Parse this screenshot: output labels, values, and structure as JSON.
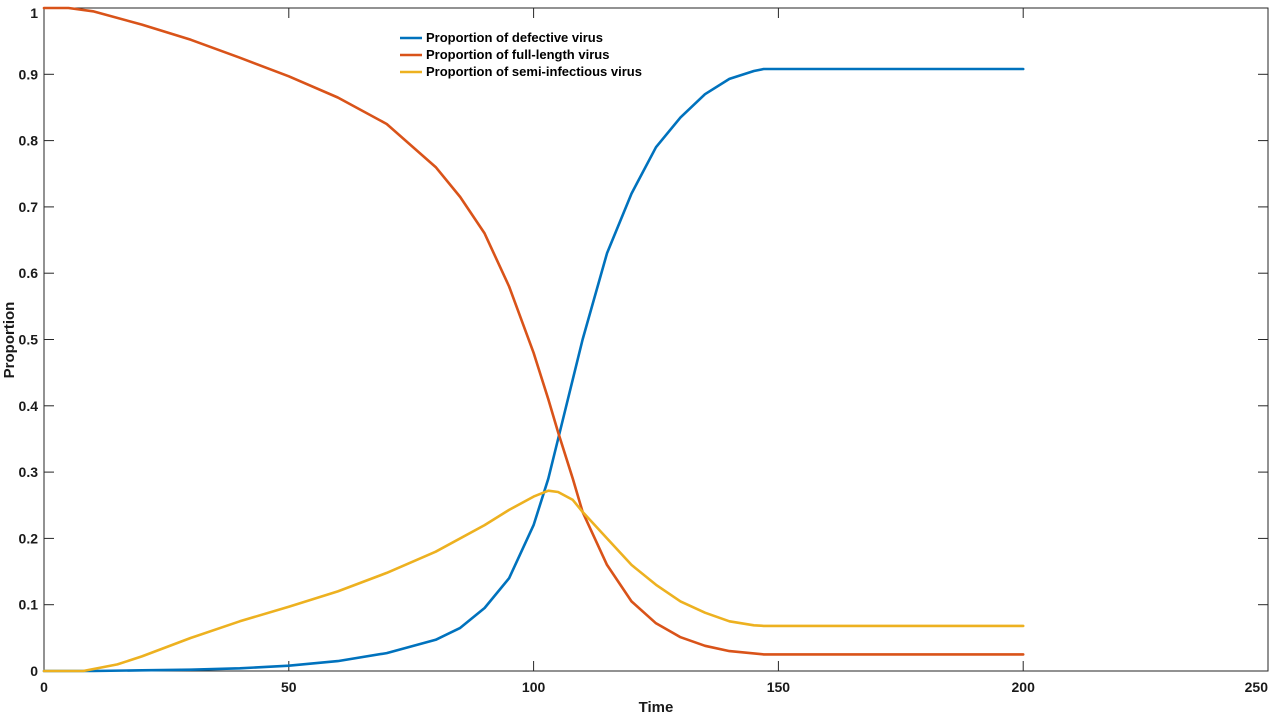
{
  "chart_data": {
    "type": "line",
    "title": "",
    "xlabel": "Time",
    "ylabel": "Proportion",
    "xlim": [
      0,
      250
    ],
    "ylim": [
      0,
      1
    ],
    "xticks": [
      0,
      50,
      100,
      150,
      200,
      250
    ],
    "yticks": [
      0,
      0.1,
      0.2,
      0.3,
      0.4,
      0.5,
      0.6,
      0.7,
      0.8,
      0.9,
      1
    ],
    "ytick_labels": [
      "0",
      "0.1",
      "0.2",
      "0.3",
      "0.4",
      "0.5",
      "0.6",
      "0.7",
      "0.8",
      "0.9",
      "1"
    ],
    "grid": false,
    "legend_position": "top-center",
    "series": [
      {
        "name": "Proportion of defective virus",
        "color": "#0072BD",
        "x": [
          0,
          10,
          20,
          30,
          40,
          50,
          60,
          70,
          80,
          85,
          90,
          95,
          100,
          103,
          105,
          108,
          110,
          115,
          120,
          125,
          130,
          135,
          140,
          145,
          147,
          150,
          200
        ],
        "y": [
          0,
          0,
          0.001,
          0.002,
          0.004,
          0.008,
          0.015,
          0.027,
          0.047,
          0.065,
          0.095,
          0.14,
          0.22,
          0.29,
          0.35,
          0.44,
          0.5,
          0.63,
          0.72,
          0.79,
          0.835,
          0.87,
          0.893,
          0.905,
          0.908,
          0.908,
          0.908
        ]
      },
      {
        "name": "Proportion of full-length virus",
        "color": "#D95319",
        "x": [
          0,
          5,
          10,
          20,
          30,
          40,
          50,
          60,
          70,
          80,
          85,
          90,
          95,
          100,
          103,
          105,
          108,
          110,
          115,
          120,
          125,
          130,
          135,
          140,
          147,
          150,
          200
        ],
        "y": [
          1,
          1,
          0.995,
          0.975,
          0.952,
          0.925,
          0.897,
          0.865,
          0.825,
          0.76,
          0.715,
          0.66,
          0.58,
          0.48,
          0.41,
          0.36,
          0.29,
          0.24,
          0.16,
          0.105,
          0.072,
          0.051,
          0.038,
          0.03,
          0.025,
          0.025,
          0.025
        ]
      },
      {
        "name": "Proportion of semi-infectious virus",
        "color": "#EDB120",
        "x": [
          0,
          8,
          15,
          20,
          30,
          40,
          50,
          60,
          70,
          80,
          90,
          95,
          100,
          103,
          105,
          108,
          110,
          115,
          120,
          125,
          130,
          135,
          140,
          145,
          147,
          150,
          200
        ],
        "y": [
          0,
          0,
          0.01,
          0.022,
          0.05,
          0.075,
          0.097,
          0.12,
          0.148,
          0.18,
          0.22,
          0.243,
          0.263,
          0.272,
          0.27,
          0.258,
          0.24,
          0.2,
          0.16,
          0.13,
          0.105,
          0.088,
          0.075,
          0.069,
          0.068,
          0.068,
          0.068
        ]
      }
    ]
  }
}
